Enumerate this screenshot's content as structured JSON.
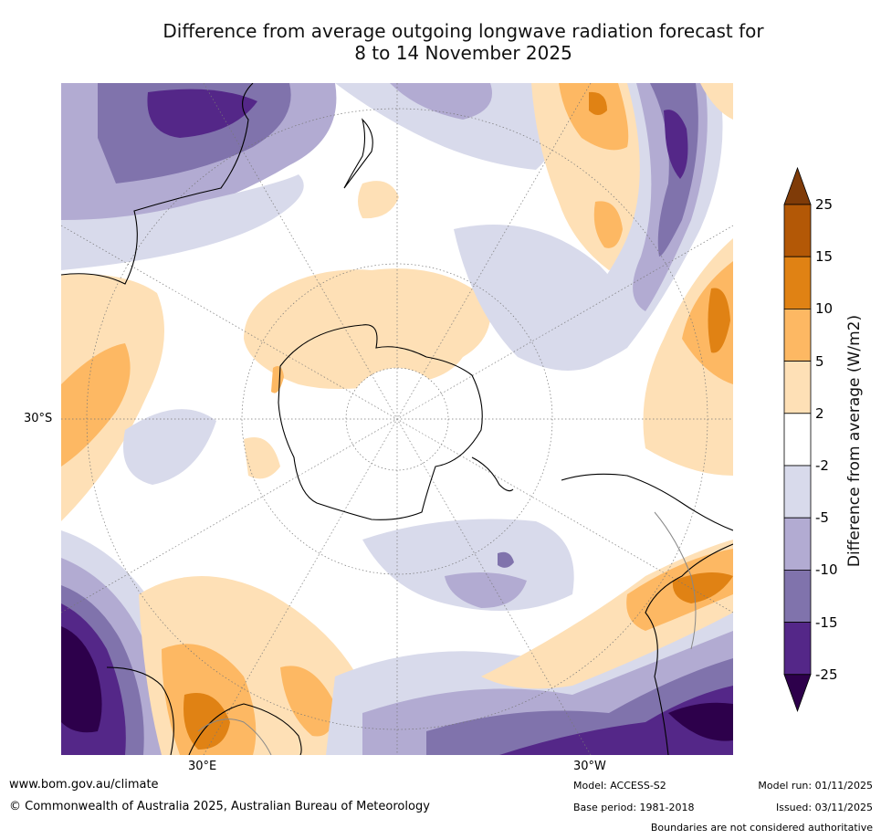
{
  "title": {
    "line1": "Difference from average outgoing longwave radiation forecast for",
    "line2": "8 to 14 November 2025"
  },
  "axis_labels": {
    "lat_30s": "30°S",
    "lon_30e": "30°E",
    "lon_30w": "30°W"
  },
  "colorbar": {
    "title": "Difference from average (W/m2)",
    "ticks": [
      "25",
      "15",
      "10",
      "5",
      "2",
      "-2",
      "-5",
      "-10",
      "-15",
      "-25"
    ],
    "colors": [
      "#7f3b08",
      "#b35806",
      "#e08214",
      "#fdb863",
      "#fee0b6",
      "#ffffff",
      "#d8daeb",
      "#b2abd2",
      "#8073ac",
      "#542788",
      "#2d004b"
    ]
  },
  "footer": {
    "website": "www.bom.gov.au/climate",
    "copyright": "© Commonwealth of Australia 2025, Australian Bureau of Meteorology",
    "model": "Model: ACCESS-S2",
    "base_period": "Base period: 1981-2018",
    "model_run": "Model run: 01/11/2025",
    "issued": "Issued: 03/11/2025",
    "disclaimer": "Boundaries are not considered authoritative"
  }
}
